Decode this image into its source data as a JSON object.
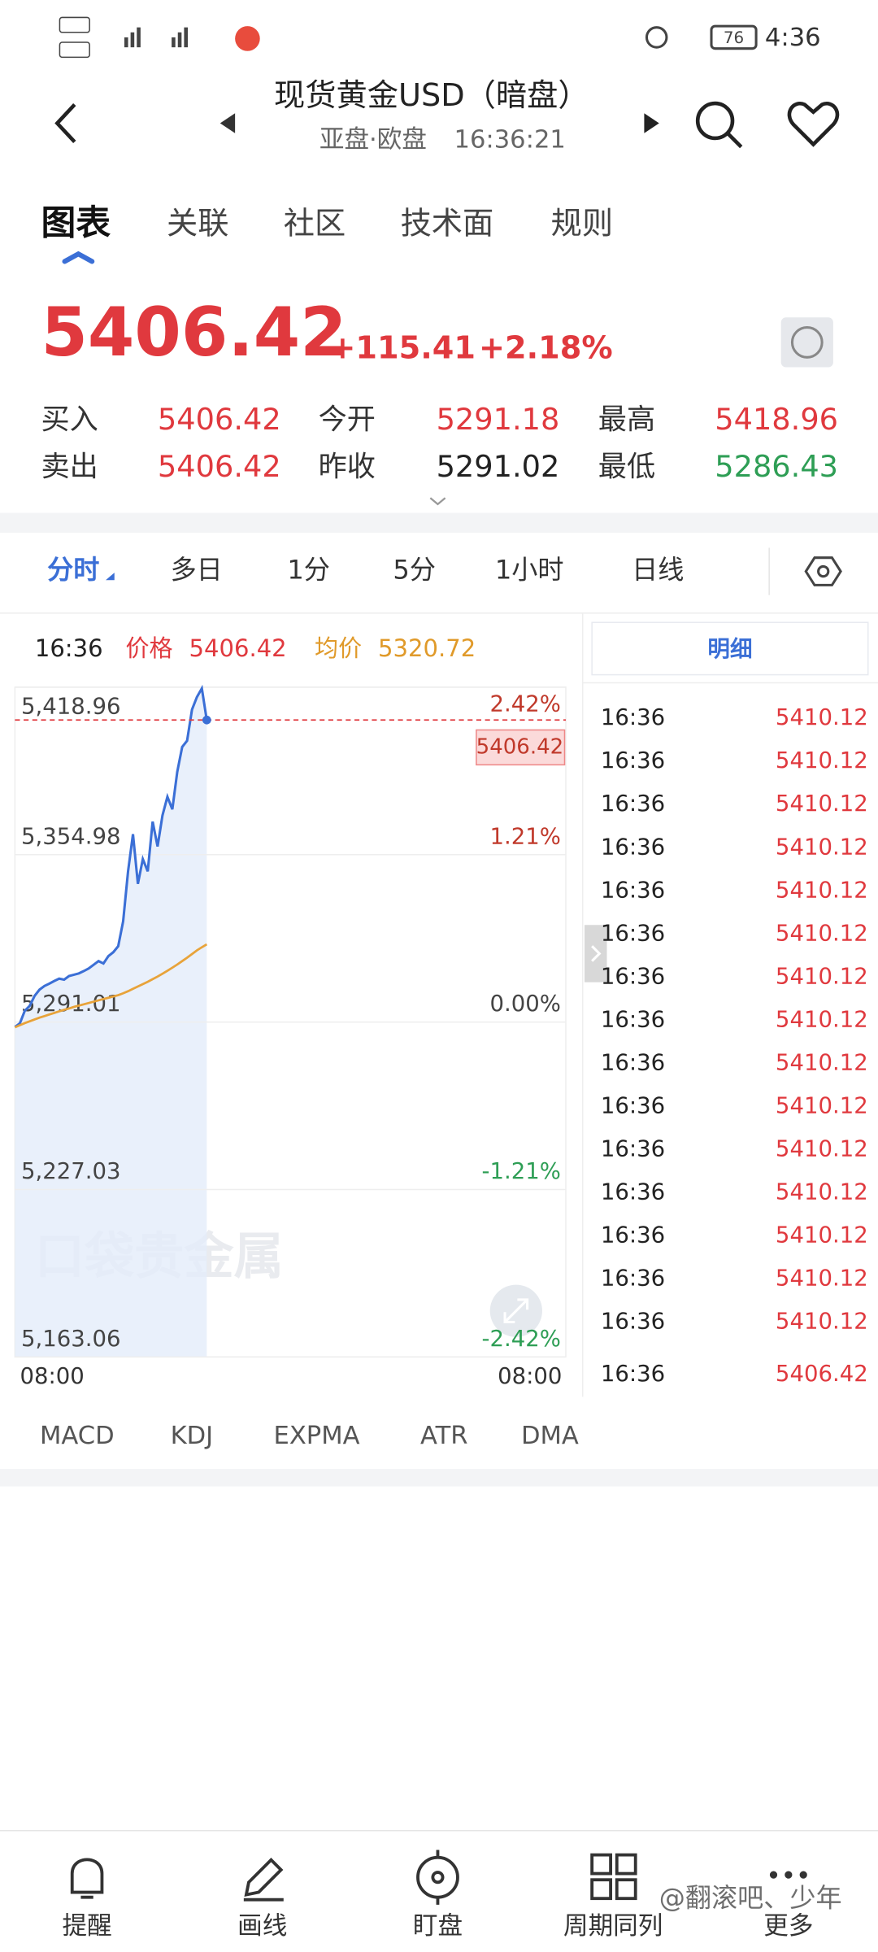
{
  "status_bar": {
    "time": "4:36",
    "battery": "76"
  },
  "header": {
    "title": "现货黄金USD（暗盘）",
    "session": "亚盘·欧盘",
    "time": "16:36:21"
  },
  "tabs": [
    "图表",
    "关联",
    "社区",
    "技术面",
    "规则"
  ],
  "quote": {
    "price": "5406.42",
    "change": "+115.41",
    "change_pct": "+2.18%"
  },
  "stats": [
    {
      "label": "买入",
      "value": "5406.42",
      "color": "#e0393e"
    },
    {
      "label": "今开",
      "value": "5291.18",
      "color": "#e0393e"
    },
    {
      "label": "最高",
      "value": "5418.96",
      "color": "#e0393e"
    },
    {
      "label": "卖出",
      "value": "5406.42",
      "color": "#e0393e"
    },
    {
      "label": "昨收",
      "value": "5291.02",
      "color": "#222222"
    },
    {
      "label": "最低",
      "value": "5286.43",
      "color": "#2e9e55"
    }
  ],
  "period_tabs": [
    "分时",
    "多日",
    "1分",
    "5分",
    "1小时",
    "日线"
  ],
  "chart_info": {
    "time": "16:36",
    "price_label": "价格",
    "price": "5406.42",
    "avg_label": "均价",
    "avg": "5320.72"
  },
  "chart_data": {
    "type": "line",
    "x": [
      0,
      1,
      2,
      3,
      4,
      5,
      6,
      7,
      8,
      9,
      10,
      11,
      12,
      13,
      14,
      15,
      16,
      17,
      18,
      19,
      20,
      21,
      22,
      23,
      24,
      25,
      26,
      27,
      28,
      29,
      30,
      31,
      32,
      33,
      34,
      35,
      36,
      37,
      38,
      39
    ],
    "xlim": [
      0,
      112
    ],
    "xticks": [
      {
        "value": 0,
        "label": "08:00"
      },
      {
        "value": 112,
        "label": "08:00"
      }
    ],
    "ylim": [
      5163.06,
      5418.96
    ],
    "yticks": [
      {
        "value": 5418.96,
        "label": "5,418.96"
      },
      {
        "value": 5354.98,
        "label": "5,354.98"
      },
      {
        "value": 5291.01,
        "label": "5,291.01"
      },
      {
        "value": 5227.03,
        "label": "5,227.03"
      },
      {
        "value": 5163.06,
        "label": "5,163.06"
      }
    ],
    "y2lim": [
      -2.42,
      2.42
    ],
    "y2ticks": [
      {
        "value": 2.42,
        "label": "2.42%",
        "color": "#c0392b"
      },
      {
        "value": 1.21,
        "label": "1.21%",
        "color": "#c0392b"
      },
      {
        "value": 0,
        "label": "0.00%",
        "color": "#444444"
      },
      {
        "value": -1.21,
        "label": "-1.21%",
        "color": "#2e9e55"
      },
      {
        "value": -2.42,
        "label": "-2.42%",
        "color": "#2e9e55"
      }
    ],
    "grid": true,
    "current_price": {
      "value": 5406.42,
      "label": "5406.42"
    },
    "watermark": "口袋贵金属",
    "series": [
      {
        "name": "价格",
        "color": "#3b6fd6",
        "values": [
          5289.1,
          5290.5,
          5295.3,
          5297.2,
          5301.0,
          5303.4,
          5304.8,
          5305.7,
          5306.7,
          5307.6,
          5307.2,
          5308.6,
          5309.1,
          5309.6,
          5310.5,
          5311.5,
          5312.9,
          5314.3,
          5313.4,
          5316.2,
          5317.7,
          5320.0,
          5329.5,
          5348.6,
          5362.8,
          5343.8,
          5353.3,
          5348.6,
          5367.6,
          5358.1,
          5370.0,
          5377.1,
          5372.3,
          5386.6,
          5396.1,
          5398.5,
          5410.4,
          5415.2,
          5418.5,
          5406.42
        ]
      },
      {
        "name": "均价",
        "color": "#e8a33a",
        "values": [
          5289.0,
          5289.8,
          5290.6,
          5291.3,
          5292.0,
          5292.7,
          5293.3,
          5293.9,
          5294.5,
          5295.1,
          5295.7,
          5296.2,
          5296.8,
          5297.3,
          5297.8,
          5298.3,
          5298.8,
          5299.3,
          5299.8,
          5300.3,
          5300.8,
          5301.3,
          5302.0,
          5302.8,
          5303.7,
          5304.6,
          5305.5,
          5306.4,
          5307.4,
          5308.4,
          5309.5,
          5310.6,
          5311.8,
          5313.0,
          5314.3,
          5315.6,
          5317.0,
          5318.4,
          5319.6,
          5320.72
        ]
      }
    ]
  },
  "detail": {
    "title": "明细",
    "rows": [
      {
        "time": "16:36",
        "price": "5410.12"
      },
      {
        "time": "16:36",
        "price": "5410.12"
      },
      {
        "time": "16:36",
        "price": "5410.12"
      },
      {
        "time": "16:36",
        "price": "5410.12"
      },
      {
        "time": "16:36",
        "price": "5410.12"
      },
      {
        "time": "16:36",
        "price": "5410.12"
      },
      {
        "time": "16:36",
        "price": "5410.12"
      },
      {
        "time": "16:36",
        "price": "5410.12"
      },
      {
        "time": "16:36",
        "price": "5410.12"
      },
      {
        "time": "16:36",
        "price": "5410.12"
      },
      {
        "time": "16:36",
        "price": "5410.12"
      },
      {
        "time": "16:36",
        "price": "5410.12"
      },
      {
        "time": "16:36",
        "price": "5410.12"
      },
      {
        "time": "16:36",
        "price": "5410.12"
      },
      {
        "time": "16:36",
        "price": "5410.12"
      },
      {
        "time": "16:36",
        "price": "5406.42"
      }
    ]
  },
  "indicators": [
    "MACD",
    "KDJ",
    "EXPMA",
    "ATR",
    "DMA"
  ],
  "bottom_nav": [
    "提醒",
    "画线",
    "盯盘",
    "周期同列",
    "更多"
  ],
  "watermark": "@翻滚吧、少年"
}
